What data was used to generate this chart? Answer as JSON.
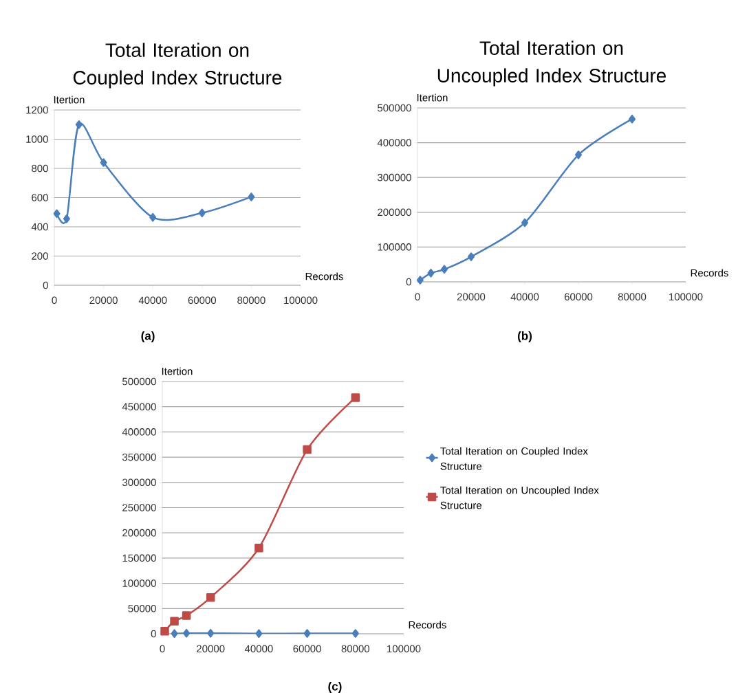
{
  "chart_data": [
    {
      "type": "line",
      "title": "Total Iteration on Coupled Index Structure",
      "xlabel": "Records",
      "ylabel": "Itertion",
      "x": [
        1000,
        5000,
        10000,
        20000,
        40000,
        60000,
        80000
      ],
      "series": [
        {
          "color": "#4a7ebb",
          "values": [
            490,
            455,
            1100,
            840,
            465,
            495,
            605
          ]
        }
      ],
      "xlim": [
        0,
        100000
      ],
      "xticks": [
        0,
        20000,
        40000,
        60000,
        80000,
        100000
      ],
      "ylim": [
        0,
        1200
      ],
      "yticks": [
        0,
        200,
        400,
        600,
        800,
        1000,
        1200
      ],
      "grid": "y",
      "marker": "diamond",
      "line_style": "solid",
      "annotations": [
        "(a)"
      ]
    },
    {
      "type": "line",
      "title": "Total Iteration on Uncoupled Index Structure",
      "xlabel": "Records",
      "ylabel": "Itertion",
      "x": [
        1000,
        5000,
        10000,
        20000,
        40000,
        60000,
        80000
      ],
      "series": [
        {
          "color": "#4a7ebb",
          "values": [
            5000,
            25000,
            36000,
            72000,
            170000,
            365000,
            468000
          ]
        }
      ],
      "xlim": [
        0,
        100000
      ],
      "xticks": [
        0,
        20000,
        40000,
        60000,
        80000,
        100000
      ],
      "ylim": [
        0,
        500000
      ],
      "yticks": [
        0,
        100000,
        200000,
        300000,
        400000,
        500000
      ],
      "grid": "y",
      "marker": "diamond",
      "line_style": "solid",
      "annotations": [
        "(b)"
      ]
    },
    {
      "type": "line",
      "xlabel": "Records",
      "ylabel": "Itertion",
      "x": [
        1000,
        5000,
        10000,
        20000,
        40000,
        60000,
        80000
      ],
      "series": [
        {
          "name": "Total Iteration  on Coupled Index Structure",
          "color": "#4a7ebb",
          "marker": "diamond",
          "values": [
            null,
            455,
            1100,
            840,
            465,
            495,
            605
          ]
        },
        {
          "name": "Total Iteration  on Uncoupled Index Structure",
          "color": "#be4b48",
          "marker": "square",
          "values": [
            5000,
            25000,
            36000,
            72000,
            170000,
            365000,
            468000
          ]
        }
      ],
      "xlim": [
        0,
        100000
      ],
      "xticks": [
        0,
        20000,
        40000,
        60000,
        80000,
        100000
      ],
      "ylim": [
        0,
        500000
      ],
      "yticks": [
        0,
        50000,
        100000,
        150000,
        200000,
        250000,
        300000,
        350000,
        400000,
        450000,
        500000
      ],
      "grid": "y",
      "line_style": "solid",
      "legend": "right",
      "annotations": [
        "(c)"
      ]
    }
  ]
}
